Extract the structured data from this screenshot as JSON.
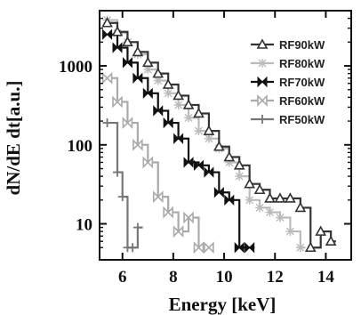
{
  "chart_data": {
    "type": "line",
    "title": "",
    "xlabel": "Energy [keV]",
    "ylabel": "dN/dE dt[a.u.]",
    "xlim": [
      5.1,
      15.0
    ],
    "ylim": [
      3.5,
      5000
    ],
    "yscale": "log",
    "xticks": [
      6,
      8,
      10,
      12,
      14
    ],
    "yticks": [
      10,
      100,
      1000
    ],
    "xtick_labels": [
      "6",
      "8",
      "10",
      "12",
      "14"
    ],
    "ytick_labels": [
      "10",
      "100",
      "1000"
    ],
    "legend_position": "top-right",
    "grid": false,
    "series": [
      {
        "name": "RF90kW",
        "color": "#333333",
        "marker": "triangle",
        "x": [
          5.4,
          5.8,
          6.2,
          6.6,
          7.0,
          7.4,
          7.8,
          8.2,
          8.6,
          9.0,
          9.4,
          9.8,
          10.2,
          10.6,
          11.0,
          11.4,
          11.8,
          12.2,
          12.6,
          13.0,
          13.4,
          13.8,
          14.2
        ],
        "y": [
          3500,
          2700,
          2000,
          1500,
          1100,
          800,
          580,
          420,
          320,
          250,
          150,
          95,
          70,
          55,
          32,
          27,
          21,
          21,
          21,
          16,
          5,
          8,
          6
        ]
      },
      {
        "name": "RF80kW",
        "color": "#bbbbbb",
        "marker": "star",
        "x": [
          5.4,
          5.8,
          6.2,
          6.6,
          7.0,
          7.4,
          7.8,
          8.2,
          8.6,
          9.0,
          9.4,
          9.8,
          10.2,
          10.6,
          11.0,
          11.4,
          11.8,
          12.2,
          12.6,
          13.0
        ],
        "y": [
          3800,
          2600,
          2000,
          1400,
          900,
          650,
          450,
          320,
          220,
          150,
          120,
          90,
          60,
          40,
          20,
          16,
          14,
          12,
          8,
          5
        ]
      },
      {
        "name": "RF70kW",
        "color": "#111111",
        "marker": "bowtie-filled",
        "x": [
          5.4,
          5.8,
          6.2,
          6.6,
          7.0,
          7.4,
          7.8,
          8.2,
          8.6,
          9.0,
          9.4,
          9.8,
          10.2,
          10.6,
          11.0
        ],
        "y": [
          2500,
          1700,
          1100,
          700,
          450,
          270,
          190,
          120,
          60,
          55,
          45,
          25,
          20,
          5,
          5
        ]
      },
      {
        "name": "RF60kW",
        "color": "#aaaaaa",
        "marker": "bowtie-open",
        "x": [
          5.4,
          5.8,
          6.2,
          6.6,
          7.0,
          7.4,
          7.8,
          8.2,
          8.6,
          9.0,
          9.4
        ],
        "y": [
          700,
          350,
          190,
          100,
          60,
          22,
          14,
          8,
          12,
          5,
          5
        ]
      },
      {
        "name": "RF50kW",
        "color": "#777777",
        "marker": "plus",
        "x": [
          5.4,
          5.8,
          6.0,
          6.2,
          6.4,
          6.6
        ],
        "y": [
          190,
          45,
          22,
          5,
          5,
          9
        ]
      }
    ]
  }
}
